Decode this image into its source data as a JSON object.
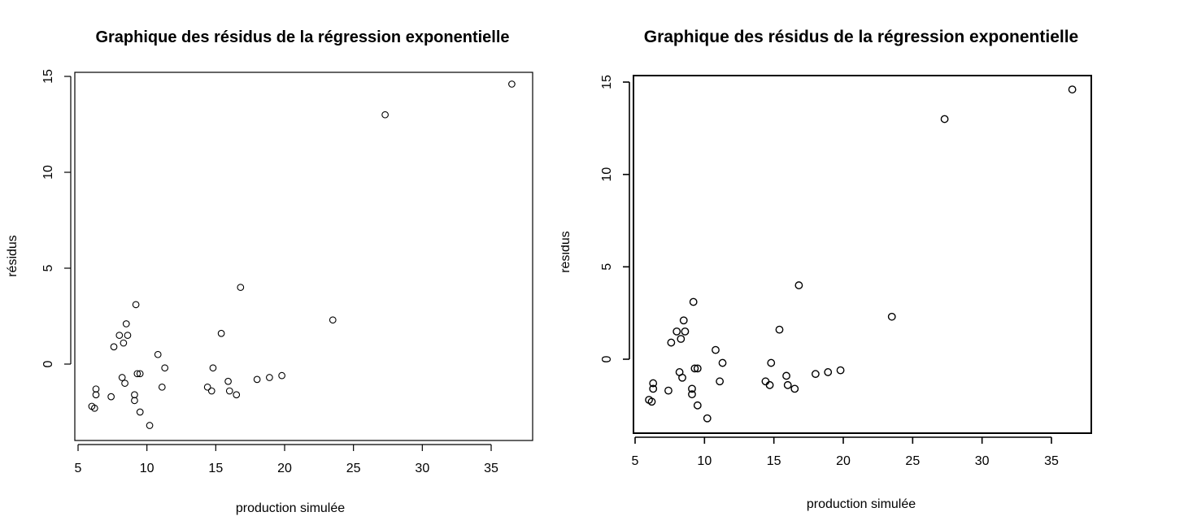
{
  "chart_data": [
    {
      "type": "scatter",
      "title": "Graphique des résidus de la régression exponentielle",
      "xlabel": "production simulée",
      "ylabel": "résidus",
      "xlim": [
        5,
        38
      ],
      "ylim": [
        -4,
        15.5
      ],
      "xticks": [
        5,
        10,
        15,
        20,
        25,
        30,
        35
      ],
      "yticks": [
        0,
        5,
        10,
        15
      ],
      "grid": false,
      "series": [
        {
          "marker": "open-circle",
          "color": "#000000",
          "x": [
            6.0,
            6.2,
            6.3,
            6.3,
            7.4,
            7.6,
            8.0,
            8.2,
            8.3,
            8.4,
            8.5,
            8.6,
            9.1,
            9.1,
            9.2,
            9.3,
            9.5,
            9.5,
            10.2,
            10.8,
            11.1,
            11.3,
            14.4,
            14.7,
            14.8,
            15.4,
            15.9,
            16.0,
            16.5,
            16.8,
            18.0,
            18.9,
            19.8,
            23.5,
            27.3,
            36.5
          ],
          "y": [
            -2.2,
            -2.3,
            -1.6,
            -1.3,
            -1.7,
            0.9,
            1.5,
            -0.7,
            1.1,
            -1.0,
            2.1,
            1.5,
            -1.6,
            -1.9,
            3.1,
            -0.5,
            -2.5,
            -0.5,
            -3.2,
            0.5,
            -1.2,
            -0.2,
            -1.2,
            -1.4,
            -0.2,
            1.6,
            -0.9,
            -1.4,
            -1.6,
            4.0,
            -0.8,
            -0.7,
            -0.6,
            2.3,
            13.0,
            14.6
          ]
        }
      ]
    },
    {
      "type": "scatter",
      "title": "Graphique des résidus de la régression exponentielle",
      "xlabel": "production simulée",
      "ylabel": "résidus",
      "xlim": [
        5,
        38
      ],
      "ylim": [
        -4,
        15.5
      ],
      "xticks": [
        5,
        10,
        15,
        20,
        25,
        30,
        35
      ],
      "yticks": [
        0,
        5,
        10,
        15
      ],
      "grid": false,
      "series": [
        {
          "marker": "open-circle",
          "color": "#000000",
          "x": [
            6.0,
            6.2,
            6.3,
            6.3,
            7.4,
            7.6,
            8.0,
            8.2,
            8.3,
            8.4,
            8.5,
            8.6,
            9.1,
            9.1,
            9.2,
            9.3,
            9.5,
            9.5,
            10.2,
            10.8,
            11.1,
            11.3,
            14.4,
            14.7,
            14.8,
            15.4,
            15.9,
            16.0,
            16.5,
            16.8,
            18.0,
            18.9,
            19.8,
            23.5,
            27.3,
            36.5
          ],
          "y": [
            -2.2,
            -2.3,
            -1.6,
            -1.3,
            -1.7,
            0.9,
            1.5,
            -0.7,
            1.1,
            -1.0,
            2.1,
            1.5,
            -1.6,
            -1.9,
            3.1,
            -0.5,
            -2.5,
            -0.5,
            -3.2,
            0.5,
            -1.2,
            -0.2,
            -1.2,
            -1.4,
            -0.2,
            1.6,
            -0.9,
            -1.4,
            -1.6,
            4.0,
            -0.8,
            -0.7,
            -0.6,
            2.3,
            13.0,
            14.6
          ]
        }
      ]
    }
  ]
}
